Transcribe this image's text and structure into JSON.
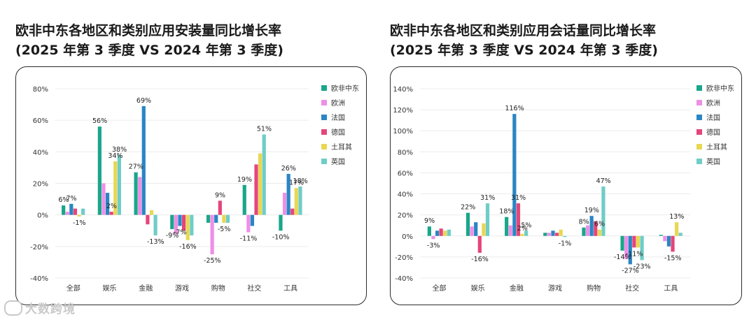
{
  "left_title_line1": "欧非中东各地区和类别应用安装量同比增长率",
  "left_title_line2": "(2025 年第 3 季度 VS 2024 年第 3 季度)",
  "right_title_line1": "欧非中东各地区和类别应用会话量同比增长率",
  "right_title_line2": "(2025 年第 3 季度 VS 2024 年第 3 季度)",
  "watermark": "大数跨境",
  "chart_data": [
    {
      "type": "bar",
      "title": "欧非中东各地区和类别应用安装量同比增长率 (2025 年第 3 季度 VS 2024 年第 3 季度)",
      "categories": [
        "全部",
        "娱乐",
        "金融",
        "游戏",
        "购物",
        "社交",
        "工具"
      ],
      "ylim": [
        -40,
        80
      ],
      "yticks": [
        -40,
        -20,
        0,
        20,
        40,
        60,
        80
      ],
      "legend_position": "right",
      "series": [
        {
          "name": "欧非中东",
          "color": "#1aa68a",
          "values": [
            6,
            56,
            27,
            -9,
            -5,
            19,
            -10
          ]
        },
        {
          "name": "欧洲",
          "color": "#ee8fe6",
          "values": [
            2,
            20,
            24,
            -12,
            -25,
            -11,
            14
          ]
        },
        {
          "name": "法国",
          "color": "#2a86c4",
          "values": [
            7,
            14,
            69,
            -7,
            -5,
            -7,
            26
          ]
        },
        {
          "name": "德国",
          "color": "#e5457a",
          "values": [
            4,
            2,
            -6,
            -10,
            9,
            32,
            4
          ]
        },
        {
          "name": "土耳其",
          "color": "#e8d752",
          "values": [
            -1,
            34,
            3,
            -16,
            -5,
            39,
            17
          ]
        },
        {
          "name": "英国",
          "color": "#6fcdc7",
          "values": [
            4,
            38,
            -13,
            -13,
            -5,
            51,
            18
          ]
        }
      ],
      "data_labels": [
        {
          "category": "全部",
          "series": "欧非中东",
          "text": "6%"
        },
        {
          "category": "全部",
          "series": "法国",
          "text": "7%"
        },
        {
          "category": "全部",
          "series": "土耳其",
          "text": "-1%"
        },
        {
          "category": "娱乐",
          "series": "欧非中东",
          "text": "56%"
        },
        {
          "category": "娱乐",
          "series": "德国",
          "text": "2%"
        },
        {
          "category": "娱乐",
          "series": "土耳其",
          "text": "34%"
        },
        {
          "category": "娱乐",
          "series": "英国",
          "text": "38%"
        },
        {
          "category": "金融",
          "series": "欧非中东",
          "text": "27%"
        },
        {
          "category": "金融",
          "series": "法国",
          "text": "69%"
        },
        {
          "category": "金融",
          "series": "英国",
          "text": "-13%"
        },
        {
          "category": "游戏",
          "series": "欧非中东",
          "text": "-9%"
        },
        {
          "category": "游戏",
          "series": "法国",
          "text": "-7%"
        },
        {
          "category": "游戏",
          "series": "土耳其",
          "text": "-16%"
        },
        {
          "category": "购物",
          "series": "欧洲",
          "text": "-25%"
        },
        {
          "category": "购物",
          "series": "德国",
          "text": "9%"
        },
        {
          "category": "购物",
          "series": "土耳其",
          "text": "-5%"
        },
        {
          "category": "社交",
          "series": "欧非中东",
          "text": "19%"
        },
        {
          "category": "社交",
          "series": "欧洲",
          "text": "-11%"
        },
        {
          "category": "社交",
          "series": "英国",
          "text": "51%"
        },
        {
          "category": "工具",
          "series": "欧非中东",
          "text": "-10%"
        },
        {
          "category": "工具",
          "series": "法国",
          "text": "26%"
        },
        {
          "category": "工具",
          "series": "土耳其",
          "text": "17%"
        },
        {
          "category": "工具",
          "series": "英国",
          "text": "18%"
        }
      ]
    },
    {
      "type": "bar",
      "title": "欧非中东各地区和类别应用会话量同比增长率 (2025 年第 3 季度 VS 2024 年第 3 季度)",
      "categories": [
        "全部",
        "娱乐",
        "金融",
        "游戏",
        "购物",
        "社交",
        "工具"
      ],
      "ylim": [
        -40,
        140
      ],
      "yticks": [
        -40,
        -20,
        0,
        20,
        40,
        60,
        80,
        100,
        120,
        140
      ],
      "legend_position": "right",
      "series": [
        {
          "name": "欧非中东",
          "color": "#1aa68a",
          "values": [
            9,
            22,
            18,
            3,
            8,
            -14,
            1
          ]
        },
        {
          "name": "欧洲",
          "color": "#ee8fe6",
          "values": [
            -3,
            9,
            10,
            3,
            10,
            -22,
            -5
          ]
        },
        {
          "name": "法国",
          "color": "#2a86c4",
          "values": [
            5,
            13,
            116,
            5,
            19,
            -27,
            -10
          ]
        },
        {
          "name": "德国",
          "color": "#e5457a",
          "values": [
            7,
            -16,
            31,
            3,
            14,
            -11,
            -15
          ]
        },
        {
          "name": "土耳其",
          "color": "#e8d752",
          "values": [
            5,
            12,
            2,
            6,
            6,
            -11,
            13
          ]
        },
        {
          "name": "英国",
          "color": "#6fcdc7",
          "values": [
            6,
            31,
            5,
            -1,
            47,
            -23,
            3
          ]
        }
      ],
      "data_labels": [
        {
          "category": "全部",
          "series": "欧非中东",
          "text": "9%"
        },
        {
          "category": "全部",
          "series": "欧洲",
          "text": "-3%"
        },
        {
          "category": "娱乐",
          "series": "欧非中东",
          "text": "22%"
        },
        {
          "category": "娱乐",
          "series": "德国",
          "text": "-16%"
        },
        {
          "category": "娱乐",
          "series": "英国",
          "text": "31%"
        },
        {
          "category": "金融",
          "series": "欧非中东",
          "text": "18%"
        },
        {
          "category": "金融",
          "series": "法国",
          "text": "116%"
        },
        {
          "category": "金融",
          "series": "德国",
          "text": "31%"
        },
        {
          "category": "金融",
          "series": "土耳其",
          "text": "2%"
        },
        {
          "category": "金融",
          "series": "英国",
          "text": "5%"
        },
        {
          "category": "游戏",
          "series": "英国",
          "text": "-1%"
        },
        {
          "category": "购物",
          "series": "欧非中东",
          "text": "8%"
        },
        {
          "category": "购物",
          "series": "法国",
          "text": "19%"
        },
        {
          "category": "购物",
          "series": "土耳其",
          "text": "6%"
        },
        {
          "category": "购物",
          "series": "英国",
          "text": "47%"
        },
        {
          "category": "社交",
          "series": "欧非中东",
          "text": "-14%"
        },
        {
          "category": "社交",
          "series": "法国",
          "text": "-27%"
        },
        {
          "category": "社交",
          "series": "德国",
          "text": "-11%"
        },
        {
          "category": "社交",
          "series": "英国",
          "text": "-23%"
        },
        {
          "category": "工具",
          "series": "德国",
          "text": "-15%"
        },
        {
          "category": "工具",
          "series": "土耳其",
          "text": "13%"
        }
      ]
    }
  ]
}
